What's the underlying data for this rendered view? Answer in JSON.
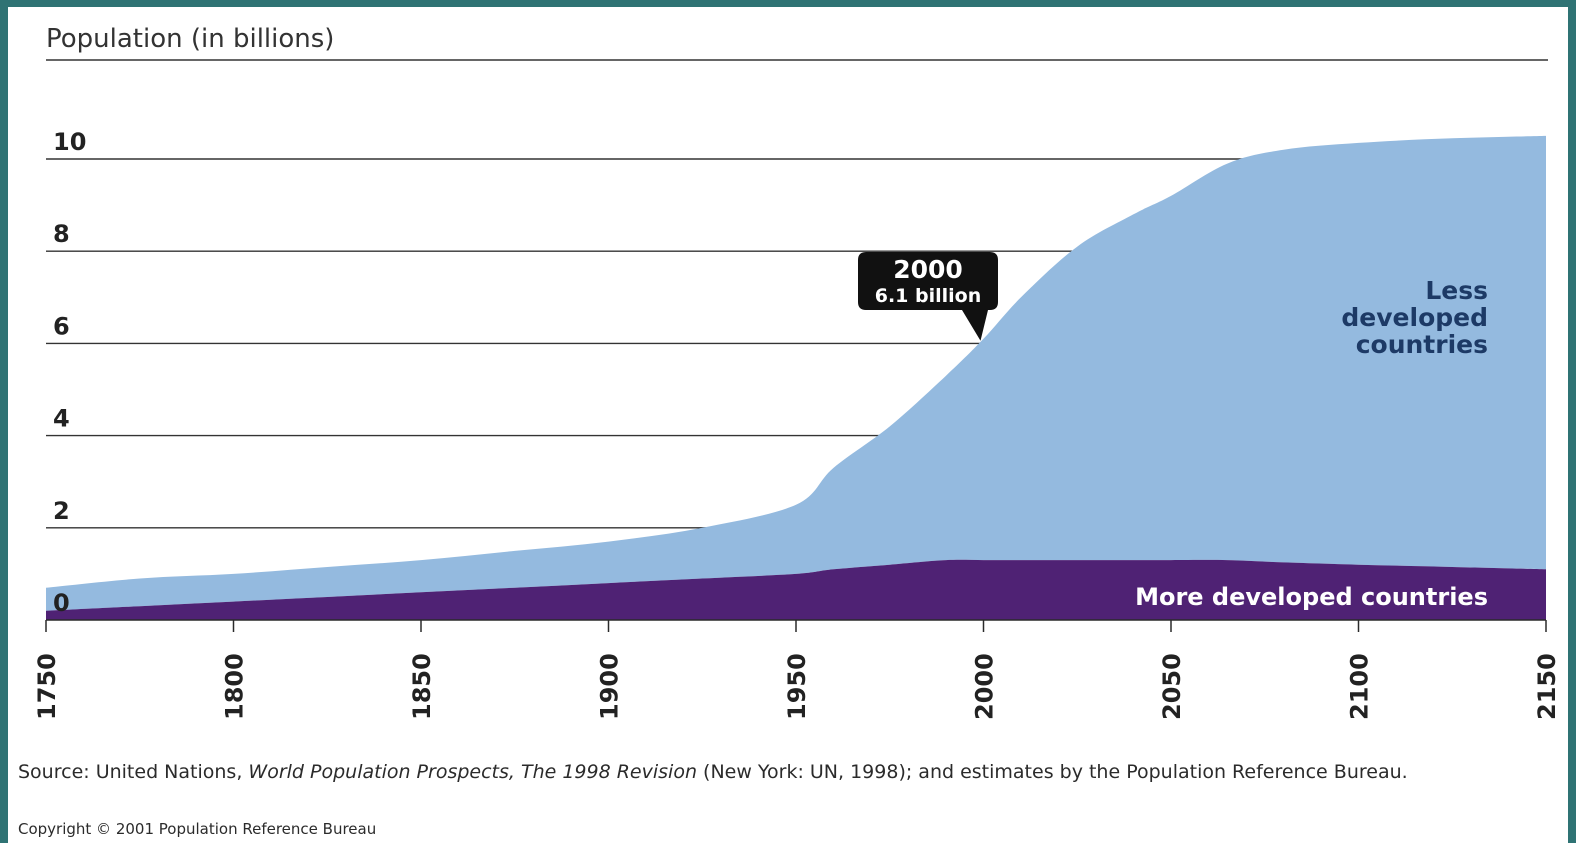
{
  "chart_data": {
    "type": "area",
    "title": "Population (in billions)",
    "stacked": true,
    "x": [
      1750,
      1775,
      1800,
      1825,
      1850,
      1875,
      1900,
      1925,
      1950,
      1960,
      1975,
      1990,
      2000,
      2010,
      2025,
      2040,
      2050,
      2065,
      2080,
      2100,
      2125,
      2150
    ],
    "series": [
      {
        "name": "More developed countries",
        "color": "#4f2274",
        "values": [
          0.2,
          0.3,
          0.4,
          0.5,
          0.6,
          0.7,
          0.8,
          0.9,
          1.0,
          1.1,
          1.2,
          1.3,
          1.3,
          1.3,
          1.3,
          1.3,
          1.3,
          1.3,
          1.25,
          1.2,
          1.15,
          1.1
        ]
      },
      {
        "name": "Less developed countries",
        "color": "#94badf",
        "values": [
          0.5,
          0.6,
          0.6,
          0.65,
          0.7,
          0.8,
          0.9,
          1.1,
          1.5,
          2.2,
          3.0,
          4.0,
          4.8,
          5.7,
          6.8,
          7.5,
          7.9,
          8.6,
          8.95,
          9.15,
          9.3,
          9.4
        ]
      }
    ],
    "ylabel": "",
    "xlabel": "",
    "ylim": [
      0,
      11
    ],
    "yticks": [
      0,
      2,
      4,
      6,
      8,
      10
    ],
    "xticks": [
      1750,
      1800,
      1850,
      1900,
      1950,
      2000,
      2050,
      2100,
      2150
    ],
    "grid": "horizontal",
    "legend_less_developed": [
      "Less",
      "developed",
      "countries"
    ],
    "legend_more_developed": "More developed countries",
    "annotation": {
      "x": 2000,
      "y": 6.1,
      "line1": "2000",
      "line2": "6.1 billion"
    }
  },
  "source": {
    "prefix": "Source: United Nations, ",
    "italic": "World Population Prospects, The 1998 Revision",
    "suffix": " (New York: UN, 1998); and estimates by the Population Reference Bureau."
  },
  "copyright": "Copyright © 2001 Population Reference Bureau"
}
